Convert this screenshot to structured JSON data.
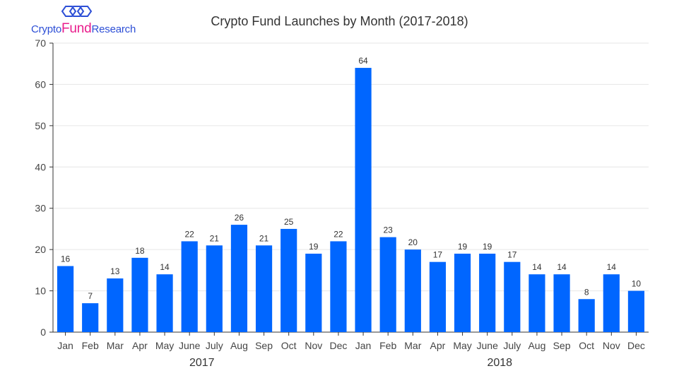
{
  "logo": {
    "part1": "Crypto",
    "part2": "Fund",
    "part3": "Research",
    "color_primary": "#2d4fd6",
    "color_accent": "#e91e8c"
  },
  "colors": {
    "bar": "#0066ff",
    "grid": "#e6e6e6",
    "axis": "#333333"
  },
  "chart_data": {
    "type": "bar",
    "title": "Crypto Fund Launches by Month (2017-2018)",
    "xlabel": "",
    "ylabel": "",
    "ylim": [
      0,
      70
    ],
    "yticks": [
      0,
      10,
      20,
      30,
      40,
      50,
      60,
      70
    ],
    "grid": true,
    "categories": [
      "Jan",
      "Feb",
      "Mar",
      "Apr",
      "May",
      "June",
      "July",
      "Aug",
      "Sep",
      "Oct",
      "Nov",
      "Dec",
      "Jan",
      "Feb",
      "Mar",
      "Apr",
      "May",
      "June",
      "July",
      "Aug",
      "Sep",
      "Oct",
      "Nov",
      "Dec"
    ],
    "values": [
      16,
      7,
      13,
      18,
      14,
      22,
      21,
      26,
      21,
      25,
      19,
      22,
      64,
      23,
      20,
      17,
      19,
      19,
      17,
      14,
      14,
      8,
      14,
      10
    ],
    "groups": [
      {
        "label": "2017",
        "start": 0,
        "end": 11
      },
      {
        "label": "2018",
        "start": 12,
        "end": 23
      }
    ]
  }
}
